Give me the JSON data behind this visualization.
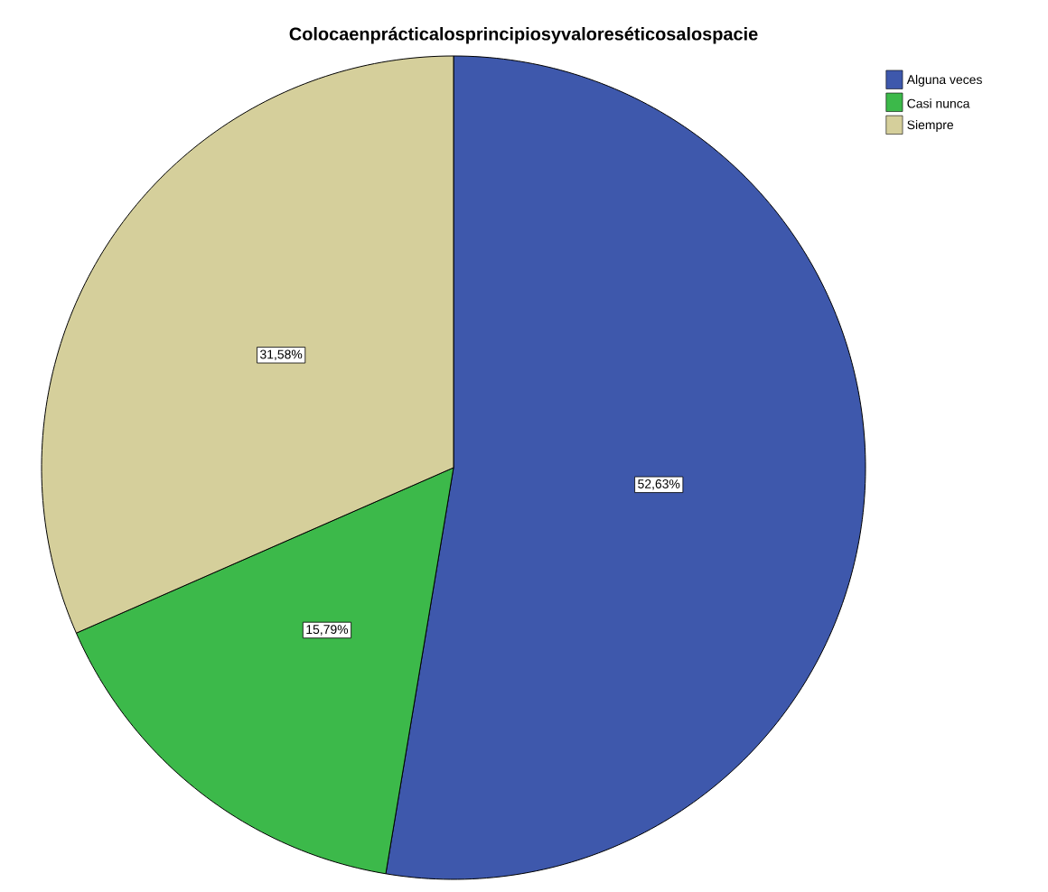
{
  "chart_data": {
    "type": "pie",
    "title": "Colocaenprácticalosprincipiosyvaloreséticosalospacie",
    "categories": [
      "Alguna veces",
      "Casi nunca",
      "Siempre"
    ],
    "values": [
      52.63,
      15.79,
      31.58
    ],
    "colors": [
      "#3e58ac",
      "#3cb94a",
      "#d5cf9b"
    ],
    "value_labels": [
      "52,63%",
      "15,79%",
      "31,58%"
    ],
    "legend": "top right"
  }
}
